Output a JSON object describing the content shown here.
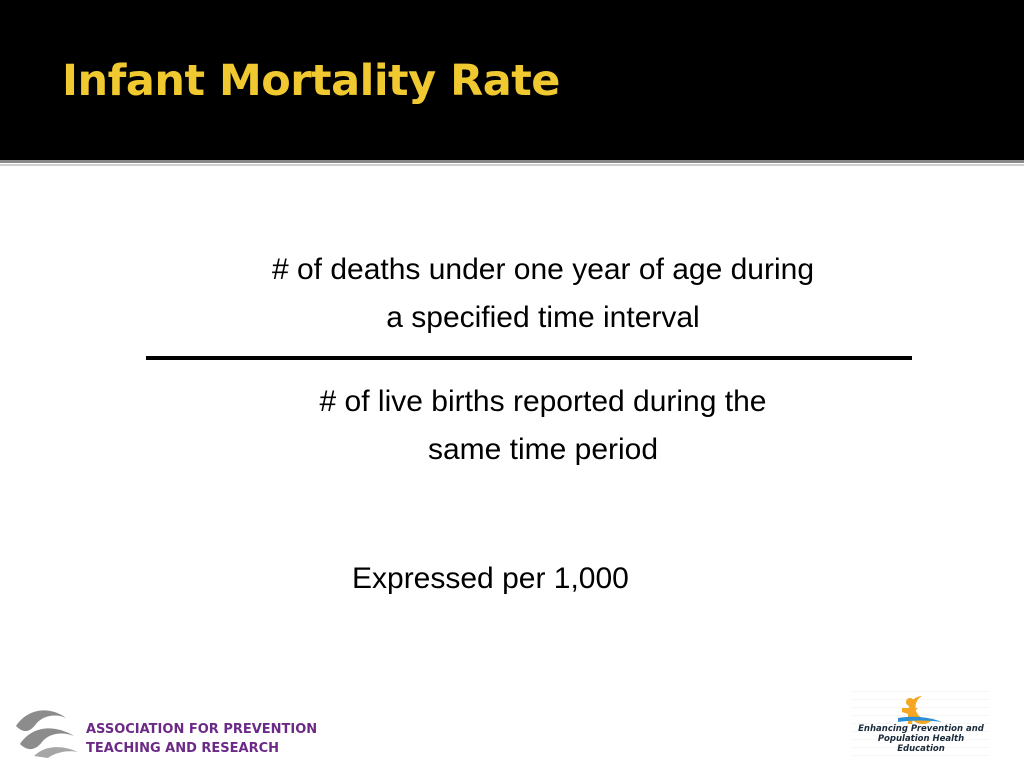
{
  "slide": {
    "title": "Infant Mortality Rate",
    "numerator": {
      "line1": "# of deaths under one year of age during",
      "line2": "a specified time interval"
    },
    "denominator": {
      "line1": "# of live births reported during the",
      "line2": "same time period"
    },
    "footnote": "Expressed per 1,000"
  },
  "footer": {
    "org_logo": {
      "line1": "ASSOCIATION FOR PREVENTION",
      "line2": "TEACHING AND RESEARCH",
      "icon": "wave-logo-icon"
    },
    "partner_logo": {
      "line1": "Enhancing Prevention and",
      "line2": "Population Health Education",
      "icon": "figure-sun-logo-icon"
    }
  },
  "colors": {
    "title_bar": "#000000",
    "title_text": "#f0c830",
    "org_text": "#6b2a86",
    "logo_gray": "#8c8c8c",
    "partner_orange": "#f5a623",
    "partner_blue": "#2a8fd6"
  }
}
